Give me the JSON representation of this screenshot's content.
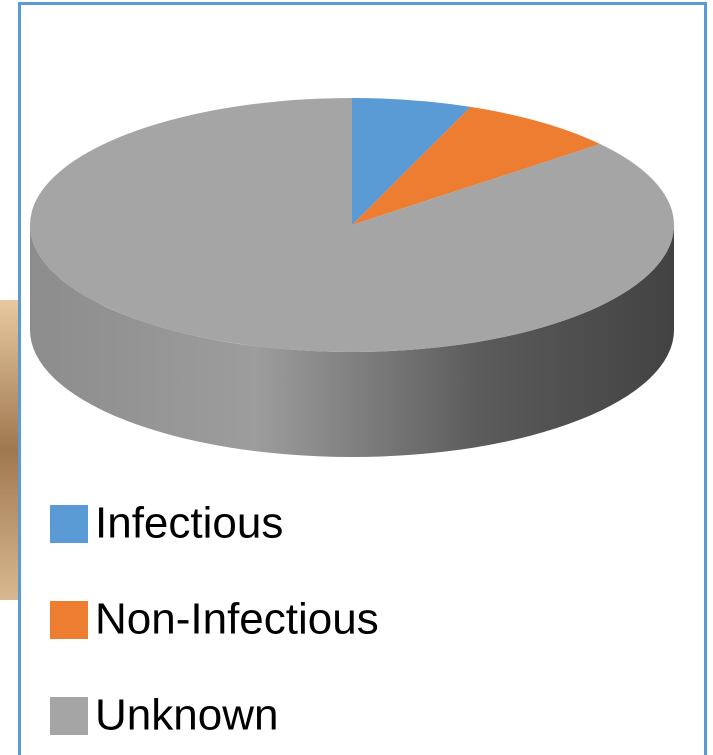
{
  "chart_data": {
    "type": "pie3d",
    "categories": [
      "Infectious",
      "Non-Infectious",
      "Unknown"
    ],
    "values": [
      6,
      8,
      86
    ],
    "colors": [
      "#5b9bd5",
      "#ed7d31",
      "#a5a5a5"
    ],
    "legend": "bottom"
  }
}
